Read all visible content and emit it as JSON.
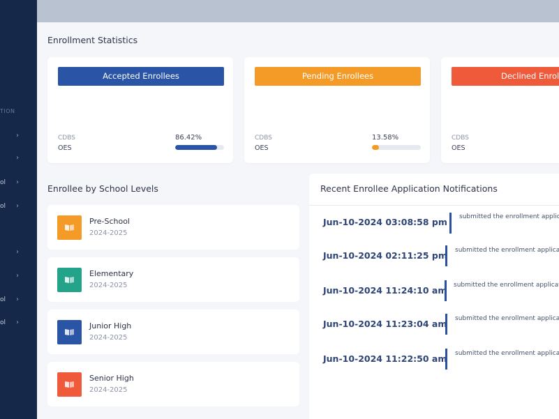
{
  "sidebar": {
    "section_label": "TION",
    "items": [
      {
        "label": "",
        "chevron": "›"
      },
      {
        "label": "",
        "chevron": "›"
      },
      {
        "label": "ol",
        "chevron": "›"
      },
      {
        "label": "ol",
        "chevron": "›"
      },
      {
        "label": "",
        "chevron": "›"
      },
      {
        "label": "",
        "chevron": "›"
      },
      {
        "label": "ol",
        "chevron": "›"
      },
      {
        "label": "ol",
        "chevron": "›"
      }
    ]
  },
  "stats": {
    "title": "Enrollment Statistics",
    "cards": [
      {
        "label": "Accepted Enrollees",
        "line1": "CDBS",
        "line2": "OES",
        "percent_text": "86.42%",
        "percent": 86.42,
        "color": "#2a54a6"
      },
      {
        "label": "Pending Enrollees",
        "line1": "CDBS",
        "line2": "OES",
        "percent_text": "13.58%",
        "percent": 13.58,
        "color": "#f39a27"
      },
      {
        "label": "Declined Enrollees",
        "line1": "CDBS",
        "line2": "OES",
        "percent_text": "",
        "percent": 0,
        "color": "#ee5a3a"
      }
    ]
  },
  "levels": {
    "title": "Enrollee by School Levels",
    "items": [
      {
        "name": "Pre-School",
        "year": "2024-2025",
        "color": "#f39a27",
        "icon": "book-icon"
      },
      {
        "name": "Elementary",
        "year": "2024-2025",
        "color": "#23a38a",
        "icon": "book-icon"
      },
      {
        "name": "Junior High",
        "year": "2024-2025",
        "color": "#2a54a6",
        "icon": "book-icon"
      },
      {
        "name": "Senior High",
        "year": "2024-2025",
        "color": "#ee5a3a",
        "icon": "book-icon"
      }
    ]
  },
  "notifications": {
    "title": "Recent Enrollee Application Notifications",
    "items": [
      {
        "timestamp": "Jun-10-2024 03:08:58 pm",
        "message": "submitted the enrollment application"
      },
      {
        "timestamp": "Jun-10-2024 02:11:25 pm",
        "message": "submitted the enrollment application"
      },
      {
        "timestamp": "Jun-10-2024 11:24:10 am",
        "message": "submitted the enrollment application"
      },
      {
        "timestamp": "Jun-10-2024 11:23:04 am",
        "message": "submitted the enrollment application"
      },
      {
        "timestamp": "Jun-10-2024 11:22:50 am",
        "message": "submitted the enrollment application"
      }
    ]
  }
}
